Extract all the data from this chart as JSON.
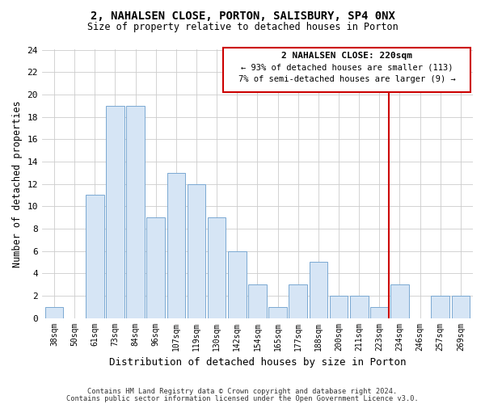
{
  "title": "2, NAHALSEN CLOSE, PORTON, SALISBURY, SP4 0NX",
  "subtitle": "Size of property relative to detached houses in Porton",
  "xlabel": "Distribution of detached houses by size in Porton",
  "ylabel": "Number of detached properties",
  "categories": [
    "38sqm",
    "50sqm",
    "61sqm",
    "73sqm",
    "84sqm",
    "96sqm",
    "107sqm",
    "119sqm",
    "130sqm",
    "142sqm",
    "154sqm",
    "165sqm",
    "177sqm",
    "188sqm",
    "200sqm",
    "211sqm",
    "223sqm",
    "234sqm",
    "246sqm",
    "257sqm",
    "269sqm"
  ],
  "values": [
    1,
    0,
    11,
    19,
    19,
    9,
    13,
    12,
    9,
    6,
    3,
    1,
    3,
    5,
    2,
    2,
    1,
    3,
    0,
    2,
    2
  ],
  "bar_color": "#d6e5f5",
  "bar_edge_color": "#7aa8d2",
  "ylim": [
    0,
    24
  ],
  "yticks": [
    0,
    2,
    4,
    6,
    8,
    10,
    12,
    14,
    16,
    18,
    20,
    22,
    24
  ],
  "vline_color": "#cc0000",
  "annotation_title": "2 NAHALSEN CLOSE: 220sqm",
  "annotation_line1": "← 93% of detached houses are smaller (113)",
  "annotation_line2": "7% of semi-detached houses are larger (9) →",
  "annotation_box_color": "#cc0000",
  "footer_line1": "Contains HM Land Registry data © Crown copyright and database right 2024.",
  "footer_line2": "Contains public sector information licensed under the Open Government Licence v3.0.",
  "bg_color": "#ffffff",
  "grid_color": "#cccccc"
}
